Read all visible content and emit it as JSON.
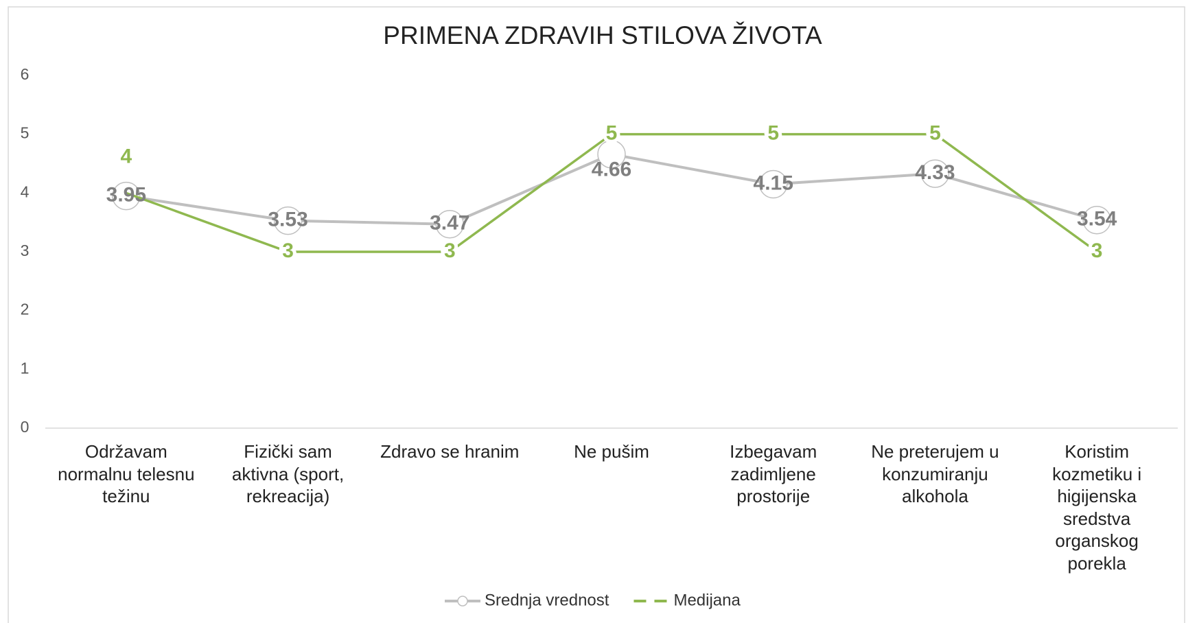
{
  "chart_data": {
    "type": "line",
    "title": "PRIMENA ZDRAVIH STILOVA ŽIVOTA",
    "categories": [
      "Održavam normalnu telesnu težinu",
      "Fizički sam aktivna (sport, rekreacija)",
      "Zdravo se hranim",
      "Ne pušim",
      "Izbegavam zadimljene prostorije",
      "Ne preterujem u konzumiranju alkohola",
      "Koristim kozmetiku i higijenska sredstva organskog porekla"
    ],
    "series": [
      {
        "name": "Srednja vrednost",
        "color": "#bfbfbf",
        "label_color": "#7f7f7f",
        "marker": "circle",
        "values": [
          3.95,
          3.53,
          3.47,
          4.66,
          4.15,
          4.33,
          3.54
        ]
      },
      {
        "name": "Medijana",
        "color": "#8fb84f",
        "label_color": "#8fb84f",
        "values": [
          4,
          3,
          3,
          5,
          5,
          5,
          3
        ]
      }
    ],
    "ylim": [
      0,
      6
    ],
    "yticks": [
      0,
      1,
      2,
      3,
      4,
      5,
      6
    ],
    "grid": false,
    "legend": "bottom"
  }
}
